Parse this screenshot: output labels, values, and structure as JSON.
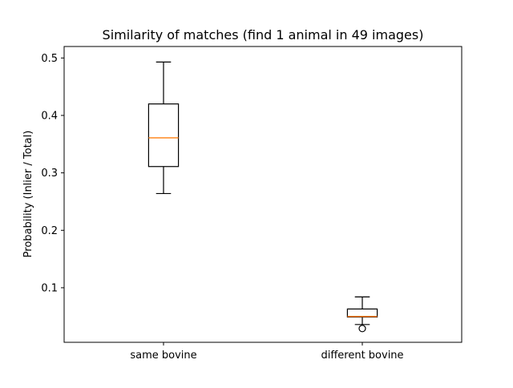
{
  "chart_data": {
    "type": "boxplot",
    "title": "Similarity of matches (find 1 animal in 49 images)",
    "xlabel": "",
    "ylabel": "Probability  (Inlier / Total)",
    "ylim": [
      0.005,
      0.52
    ],
    "yticks": [
      0.1,
      0.2,
      0.3,
      0.4,
      0.5
    ],
    "ytick_labels": [
      "0.1",
      "0.2",
      "0.3",
      "0.4",
      "0.5"
    ],
    "grid": false,
    "categories": [
      "same bovine",
      "different bovine"
    ],
    "boxes": [
      {
        "category": "same bovine",
        "whisker_low": 0.264,
        "q1": 0.311,
        "median": 0.361,
        "q3": 0.42,
        "whisker_high": 0.493,
        "outliers": []
      },
      {
        "category": "different bovine",
        "whisker_low": 0.036,
        "q1": 0.049,
        "median": 0.05,
        "q3": 0.063,
        "whisker_high": 0.084,
        "outliers": [
          0.029
        ]
      }
    ],
    "colors": {
      "box": "#000000",
      "median": "#ff7f0e",
      "background": "#ffffff"
    }
  }
}
